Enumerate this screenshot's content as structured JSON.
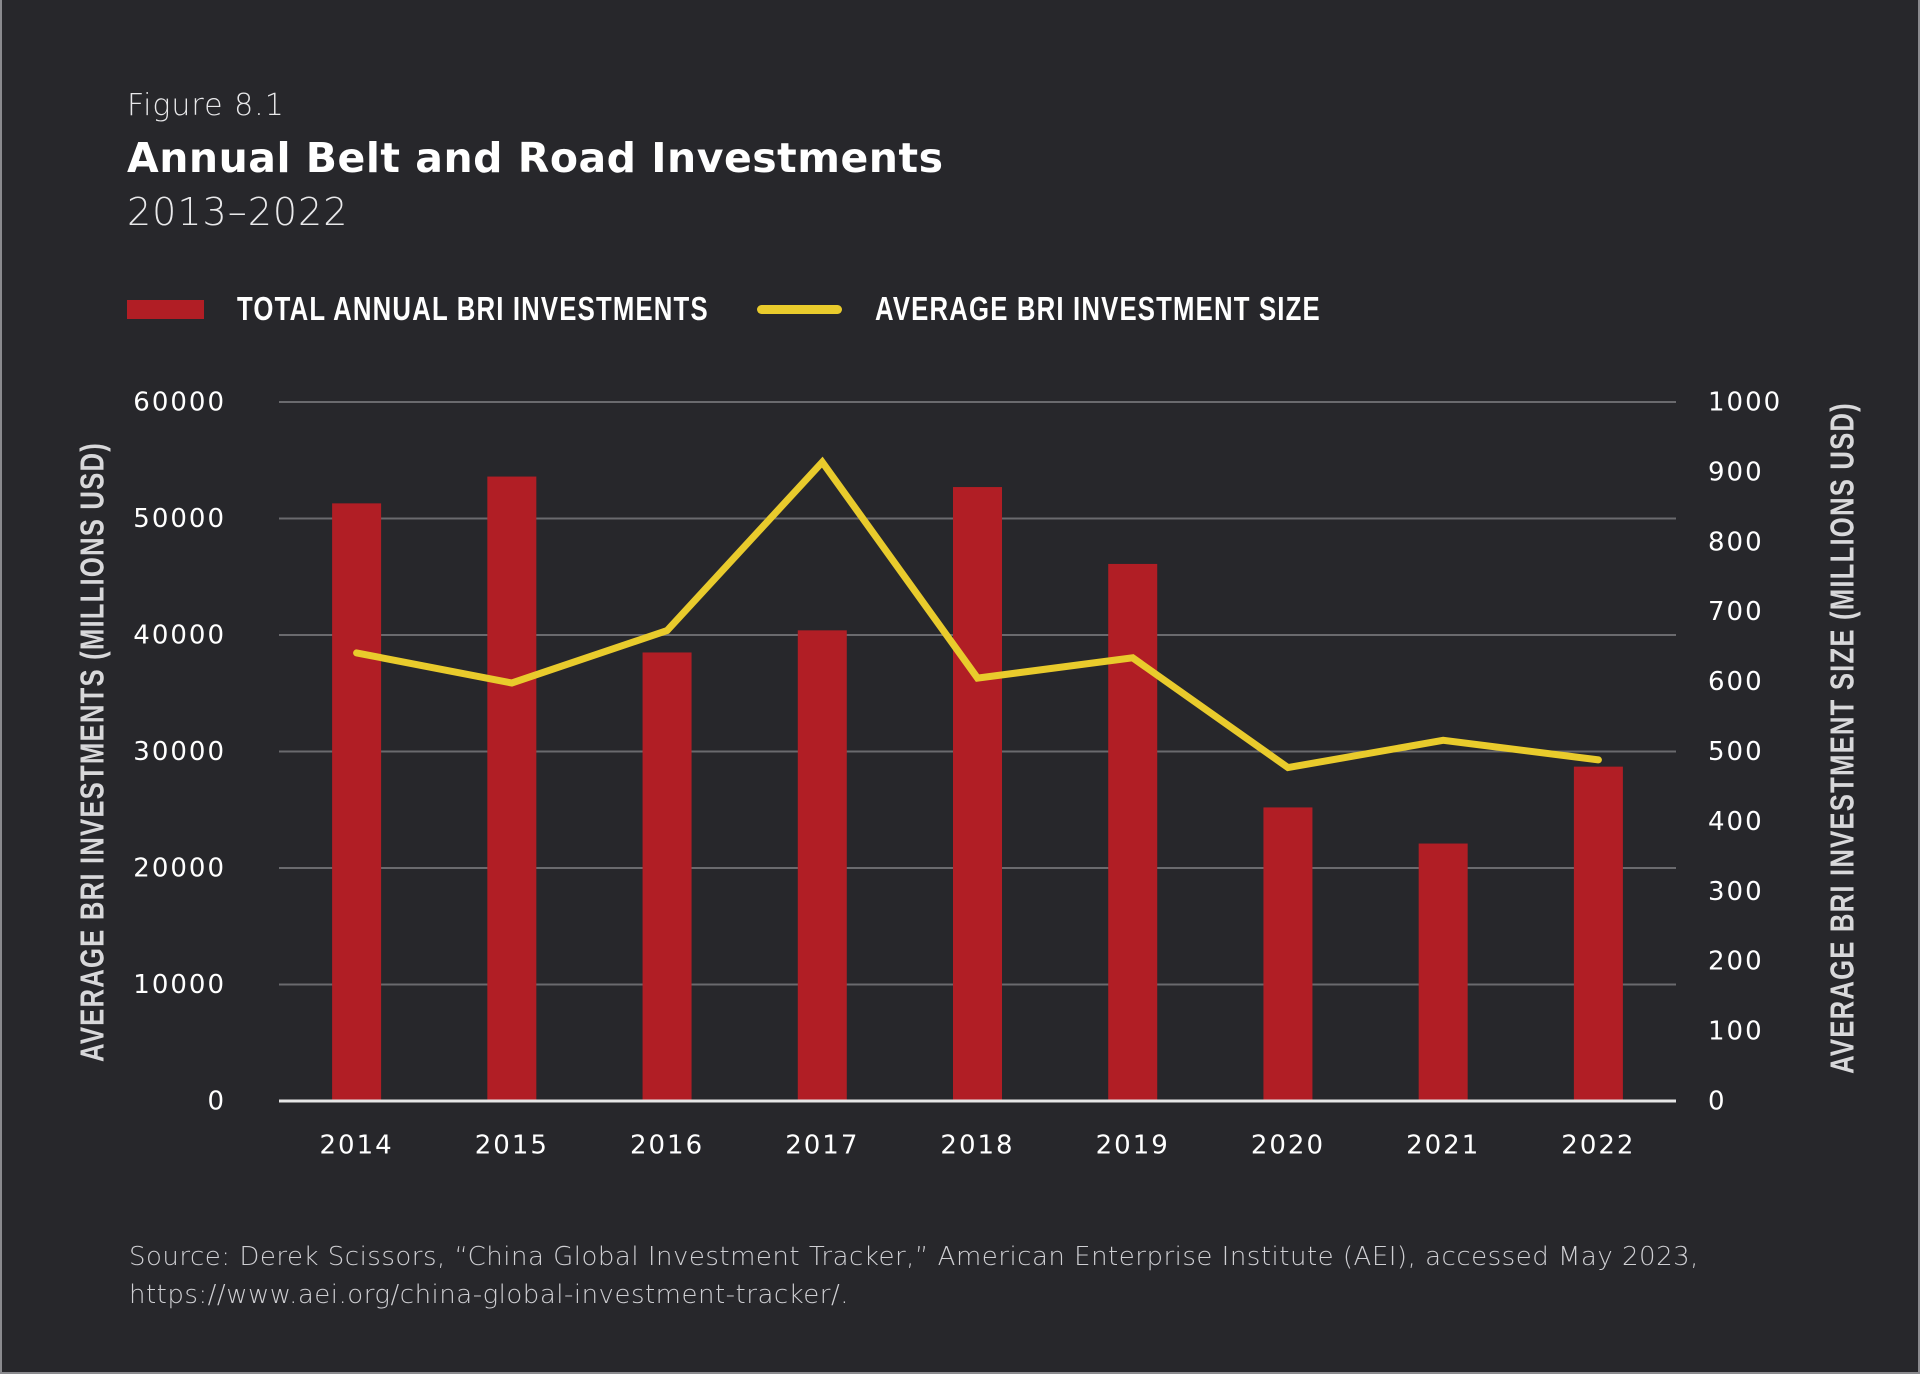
{
  "header": {
    "figure_label": "Figure 8.1",
    "title": "Annual Belt and Road Investments",
    "subtitle": "2013–2022"
  },
  "legend": {
    "bar_label": "TOTAL ANNUAL BRI INVESTMENTS",
    "line_label": "AVERAGE BRI INVESTMENT SIZE"
  },
  "colors": {
    "background": "#27272b",
    "bar": "#b11e25",
    "line": "#e9cb2c",
    "grid": "#6a6a6e",
    "baseline": "#e6e6e6"
  },
  "source": {
    "line1": "Source: Derek Scissors, “China Global Investment Tracker,” American Enterprise Institute (AEI), accessed May 2023,",
    "line2": "https://www.aei.org/china-global-investment-tracker/."
  },
  "chart_data": {
    "type": "bar",
    "title": "Annual Belt and Road Investments",
    "subtitle": "2013–2022",
    "categories": [
      "2014",
      "2015",
      "2016",
      "2017",
      "2018",
      "2019",
      "2020",
      "2021",
      "2022"
    ],
    "series": [
      {
        "name": "TOTAL ANNUAL BRI INVESTMENTS",
        "type": "bar",
        "axis": "left",
        "values": [
          51300,
          53600,
          38500,
          40400,
          52700,
          46100,
          25200,
          22100,
          28700
        ]
      },
      {
        "name": "AVERAGE BRI INVESTMENT SIZE",
        "type": "line",
        "axis": "right",
        "values": [
          641,
          598,
          673,
          914,
          605,
          634,
          477,
          516,
          488
        ]
      }
    ],
    "xlabel": "",
    "ylabel": "AVERAGE BRI INVESTMENTS (MILLIONS USD)",
    "y2label": "AVERAGE BRI INVESTMENT SIZE (MILLIONS USD)",
    "ylim": [
      0,
      60000
    ],
    "y2lim": [
      0,
      1000
    ],
    "yticks": [
      "0",
      "10000",
      "20000",
      "30000",
      "40000",
      "50000",
      "60000"
    ],
    "y2ticks": [
      "0",
      "100",
      "200",
      "300",
      "400",
      "500",
      "600",
      "700",
      "800",
      "900",
      "1000"
    ],
    "grid": true,
    "legend_position": "top-left"
  }
}
